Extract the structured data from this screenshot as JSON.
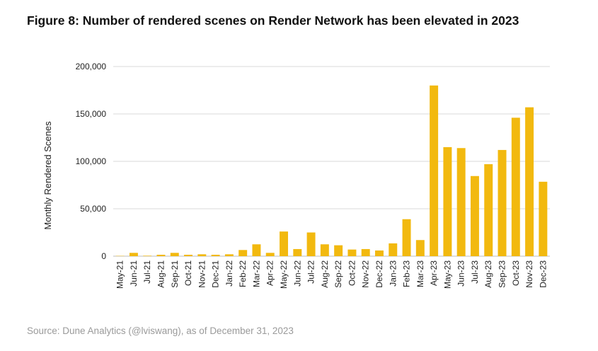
{
  "title": "Figure 8: Number of rendered scenes on Render Network has been elevated in 2023",
  "source": "Source: Dune Analytics (@lviswang), as of December 31, 2023",
  "chart_data": {
    "type": "bar",
    "title": "Figure 8: Number of rendered scenes on Render Network has been elevated in 2023",
    "xlabel": "",
    "ylabel": "Monthly Rendered Scenes",
    "ylim": [
      0,
      200000
    ],
    "yticks": [
      0,
      50000,
      100000,
      150000,
      200000
    ],
    "ytick_labels": [
      "0",
      "50,000",
      "100,000",
      "150,000",
      "200,000"
    ],
    "grid": true,
    "bar_color": "#f2b90f",
    "grid_color": "#dadada",
    "categories": [
      "May-21",
      "Jun-21",
      "Jul-21",
      "Aug-21",
      "Sep-21",
      "Oct-21",
      "Nov-21",
      "Dec-21",
      "Jan-22",
      "Feb-22",
      "Mar-22",
      "Apr-22",
      "May-22",
      "Jun-22",
      "Jul-22",
      "Aug-22",
      "Sep-22",
      "Oct-22",
      "Nov-22",
      "Dec-22",
      "Jan-23",
      "Feb-23",
      "Mar-23",
      "Apr-23",
      "May-23",
      "Jun-23",
      "Jul-23",
      "Aug-23",
      "Sep-23",
      "Oct-23",
      "Nov-23",
      "Dec-23"
    ],
    "values": [
      300,
      3500,
      500,
      1500,
      3500,
      1500,
      2000,
      1500,
      2000,
      6500,
      12500,
      3500,
      26000,
      7500,
      25000,
      12500,
      11500,
      7000,
      7500,
      6000,
      13500,
      39000,
      17000,
      180000,
      115000,
      114000,
      84500,
      97000,
      112000,
      146000,
      157000,
      78500
    ]
  }
}
